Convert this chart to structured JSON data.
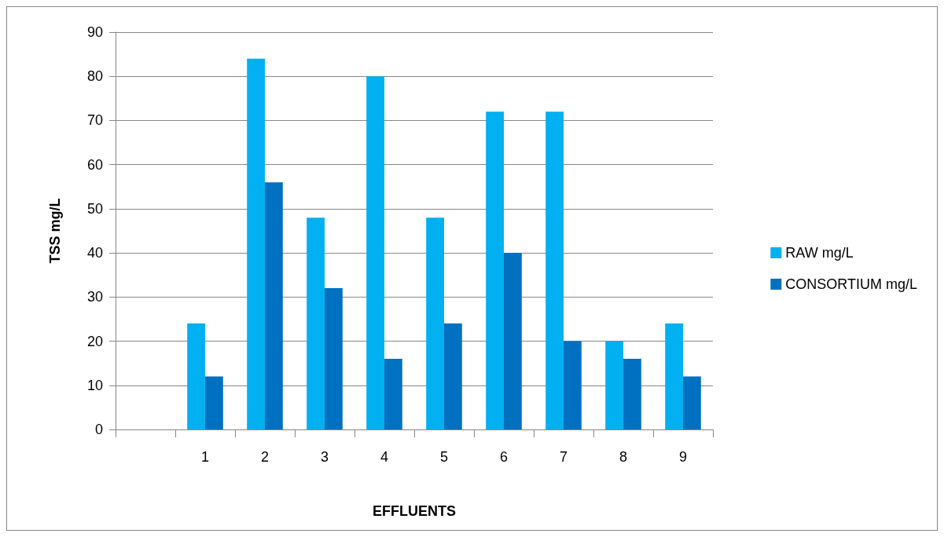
{
  "chart_data": {
    "type": "bar",
    "xlabel": "EFFLUENTS",
    "ylabel": "TSS mg/L",
    "categories": [
      null,
      "1",
      "2",
      "3",
      "4",
      "5",
      "6",
      "7",
      "8",
      "9"
    ],
    "series": [
      {
        "name": "RAW mg/L",
        "color": "#00b0f0",
        "values": [
          null,
          24,
          84,
          48,
          80,
          48,
          72,
          72,
          20,
          24
        ]
      },
      {
        "name": "CONSORTIUM mg/L",
        "color": "#0070c0",
        "values": [
          null,
          12,
          56,
          32,
          16,
          24,
          40,
          20,
          16,
          12
        ]
      }
    ],
    "ylim": [
      0,
      90
    ],
    "yticks": [
      0,
      10,
      20,
      30,
      40,
      50,
      60,
      70,
      80,
      90
    ],
    "grid": "y",
    "legend": "right"
  }
}
